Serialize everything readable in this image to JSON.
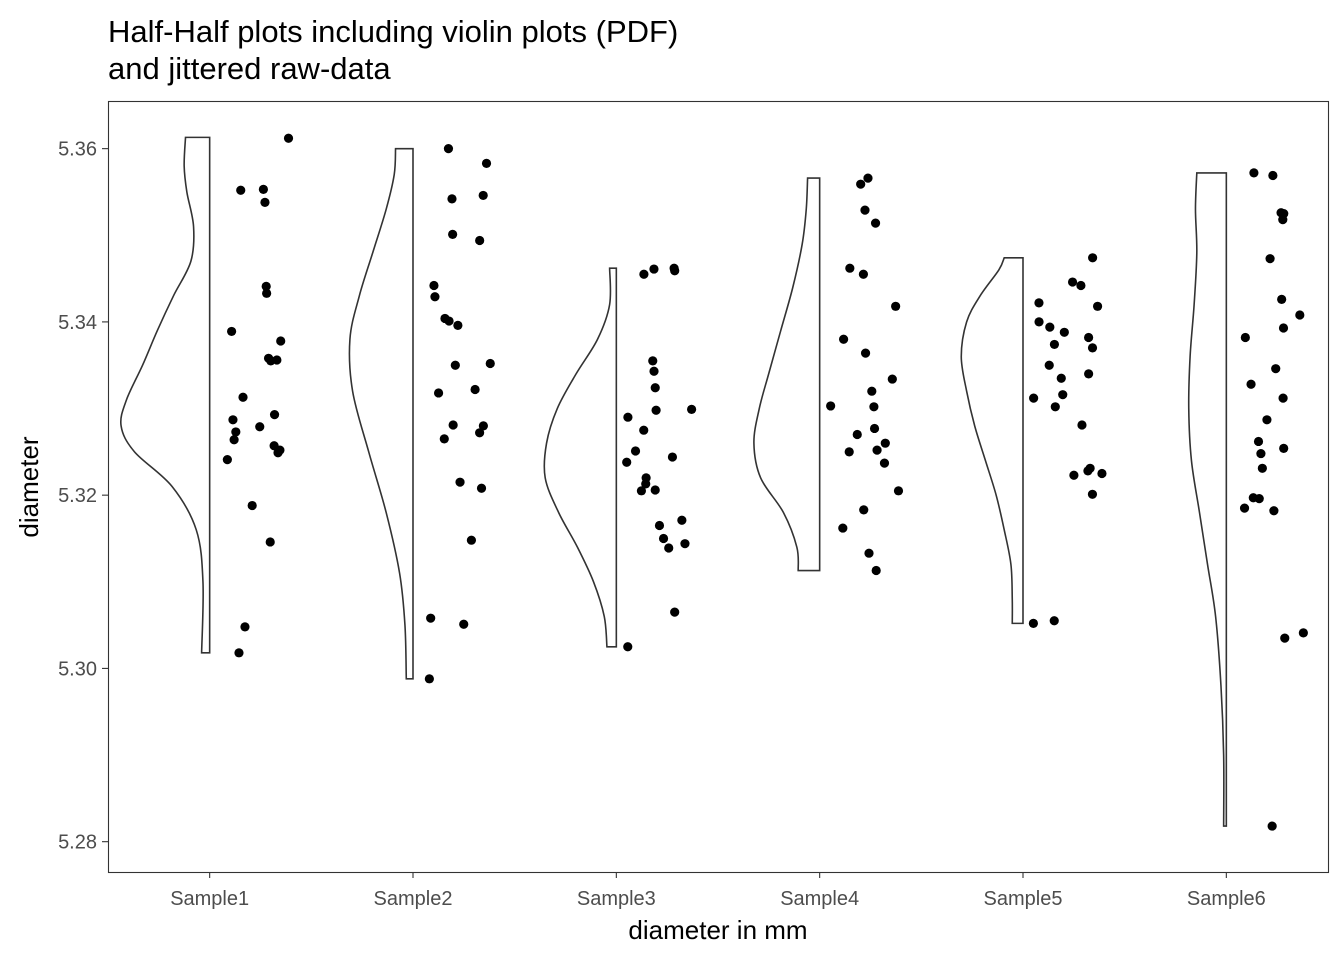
{
  "chart_data": {
    "type": "violin",
    "title": [
      "Half-Half plots including violin plots (PDF)",
      "and jittered raw-data"
    ],
    "xlabel": "diameter in mm",
    "ylabel": "diameter",
    "ylim": [
      5.2765,
      5.3655
    ],
    "yticks": [
      5.28,
      5.3,
      5.32,
      5.34,
      5.36
    ],
    "ytick_labels": [
      "5.28",
      "5.30",
      "5.32",
      "5.34",
      "5.36"
    ],
    "grid": false,
    "legend": "none",
    "categories": [
      "Sample1",
      "Sample2",
      "Sample3",
      "Sample4",
      "Sample5",
      "Sample6"
    ],
    "series": [
      {
        "category": "Sample1",
        "min": 5.3018,
        "max": 5.3613,
        "density": [
          [
            5.3018,
            0.06
          ],
          [
            5.31,
            0.05
          ],
          [
            5.316,
            0.1
          ],
          [
            5.321,
            0.28
          ],
          [
            5.325,
            0.56
          ],
          [
            5.328,
            0.66
          ],
          [
            5.331,
            0.62
          ],
          [
            5.335,
            0.5
          ],
          [
            5.339,
            0.39
          ],
          [
            5.343,
            0.27
          ],
          [
            5.347,
            0.14
          ],
          [
            5.351,
            0.12
          ],
          [
            5.355,
            0.17
          ],
          [
            5.358,
            0.19
          ],
          [
            5.3613,
            0.18
          ]
        ],
        "points": [
          5.3538,
          5.3552,
          5.3553,
          5.3612,
          5.3433,
          5.3441,
          5.3389,
          5.3378,
          5.3358,
          5.3356,
          5.3355,
          5.3313,
          5.3293,
          5.3287,
          5.3279,
          5.3273,
          5.3264,
          5.3257,
          5.3252,
          5.3249,
          5.3241,
          5.3188,
          5.3146,
          5.3048,
          5.3018
        ]
      },
      {
        "category": "Sample2",
        "min": 5.2988,
        "max": 5.36,
        "density": [
          [
            5.2988,
            0.05
          ],
          [
            5.305,
            0.06
          ],
          [
            5.311,
            0.1
          ],
          [
            5.318,
            0.2
          ],
          [
            5.325,
            0.33
          ],
          [
            5.332,
            0.45
          ],
          [
            5.338,
            0.47
          ],
          [
            5.343,
            0.4
          ],
          [
            5.348,
            0.3
          ],
          [
            5.353,
            0.2
          ],
          [
            5.357,
            0.14
          ],
          [
            5.36,
            0.13
          ]
        ],
        "points": [
          5.36,
          5.3583,
          5.3546,
          5.3542,
          5.3501,
          5.3494,
          5.3429,
          5.3442,
          5.3404,
          5.3401,
          5.3396,
          5.3352,
          5.335,
          5.3322,
          5.3318,
          5.3281,
          5.328,
          5.3272,
          5.3265,
          5.3215,
          5.3208,
          5.3148,
          5.3058,
          5.3051,
          5.2988
        ]
      },
      {
        "category": "Sample3",
        "min": 5.3025,
        "max": 5.3462,
        "density": [
          [
            5.3025,
            0.07
          ],
          [
            5.306,
            0.09
          ],
          [
            5.31,
            0.17
          ],
          [
            5.314,
            0.29
          ],
          [
            5.318,
            0.43
          ],
          [
            5.322,
            0.53
          ],
          [
            5.326,
            0.52
          ],
          [
            5.33,
            0.44
          ],
          [
            5.334,
            0.3
          ],
          [
            5.338,
            0.14
          ],
          [
            5.342,
            0.05
          ],
          [
            5.3462,
            0.05
          ]
        ],
        "points": [
          5.3462,
          5.3461,
          5.3459,
          5.3455,
          5.3355,
          5.3343,
          5.3324,
          5.3299,
          5.3298,
          5.329,
          5.3275,
          5.3251,
          5.3244,
          5.3238,
          5.322,
          5.3213,
          5.3206,
          5.3205,
          5.3171,
          5.3165,
          5.315,
          5.3144,
          5.3139,
          5.3065,
          5.3025
        ]
      },
      {
        "category": "Sample4",
        "min": 5.3113,
        "max": 5.3566,
        "density": [
          [
            5.3113,
            0.16
          ],
          [
            5.314,
            0.17
          ],
          [
            5.318,
            0.27
          ],
          [
            5.322,
            0.44
          ],
          [
            5.326,
            0.49
          ],
          [
            5.33,
            0.45
          ],
          [
            5.334,
            0.38
          ],
          [
            5.339,
            0.29
          ],
          [
            5.344,
            0.2
          ],
          [
            5.349,
            0.13
          ],
          [
            5.353,
            0.1
          ],
          [
            5.3566,
            0.09
          ]
        ],
        "points": [
          5.3566,
          5.3559,
          5.3529,
          5.3514,
          5.3462,
          5.3455,
          5.3418,
          5.338,
          5.3364,
          5.3334,
          5.332,
          5.3303,
          5.3302,
          5.3277,
          5.327,
          5.326,
          5.3252,
          5.325,
          5.3237,
          5.3205,
          5.3183,
          5.3162,
          5.3133,
          5.3113
        ]
      },
      {
        "category": "Sample5",
        "min": 5.3052,
        "max": 5.3474,
        "density": [
          [
            5.3052,
            0.08
          ],
          [
            5.308,
            0.08
          ],
          [
            5.312,
            0.09
          ],
          [
            5.316,
            0.14
          ],
          [
            5.32,
            0.2
          ],
          [
            5.324,
            0.28
          ],
          [
            5.328,
            0.36
          ],
          [
            5.332,
            0.42
          ],
          [
            5.336,
            0.46
          ],
          [
            5.34,
            0.42
          ],
          [
            5.343,
            0.32
          ],
          [
            5.346,
            0.18
          ],
          [
            5.3474,
            0.14
          ]
        ],
        "points": [
          5.3474,
          5.3446,
          5.3442,
          5.3422,
          5.3418,
          5.34,
          5.3394,
          5.3388,
          5.3382,
          5.3374,
          5.337,
          5.335,
          5.334,
          5.3335,
          5.3316,
          5.3312,
          5.3302,
          5.3281,
          5.3231,
          5.3228,
          5.3225,
          5.3223,
          5.3201,
          5.3055,
          5.3052
        ]
      },
      {
        "category": "Sample6",
        "min": 5.2818,
        "max": 5.3572,
        "density": [
          [
            5.2818,
            0.02
          ],
          [
            5.29,
            0.02
          ],
          [
            5.298,
            0.04
          ],
          [
            5.306,
            0.08
          ],
          [
            5.312,
            0.14
          ],
          [
            5.318,
            0.2
          ],
          [
            5.324,
            0.26
          ],
          [
            5.33,
            0.28
          ],
          [
            5.336,
            0.27
          ],
          [
            5.342,
            0.24
          ],
          [
            5.348,
            0.22
          ],
          [
            5.353,
            0.23
          ],
          [
            5.3572,
            0.22
          ]
        ],
        "points": [
          5.3572,
          5.3569,
          5.3526,
          5.3525,
          5.3518,
          5.3473,
          5.3426,
          5.3408,
          5.3393,
          5.3382,
          5.3346,
          5.3328,
          5.3312,
          5.3287,
          5.3262,
          5.3254,
          5.3248,
          5.3231,
          5.3197,
          5.3196,
          5.3185,
          5.3182,
          5.3041,
          5.3035,
          5.2818
        ]
      }
    ]
  }
}
